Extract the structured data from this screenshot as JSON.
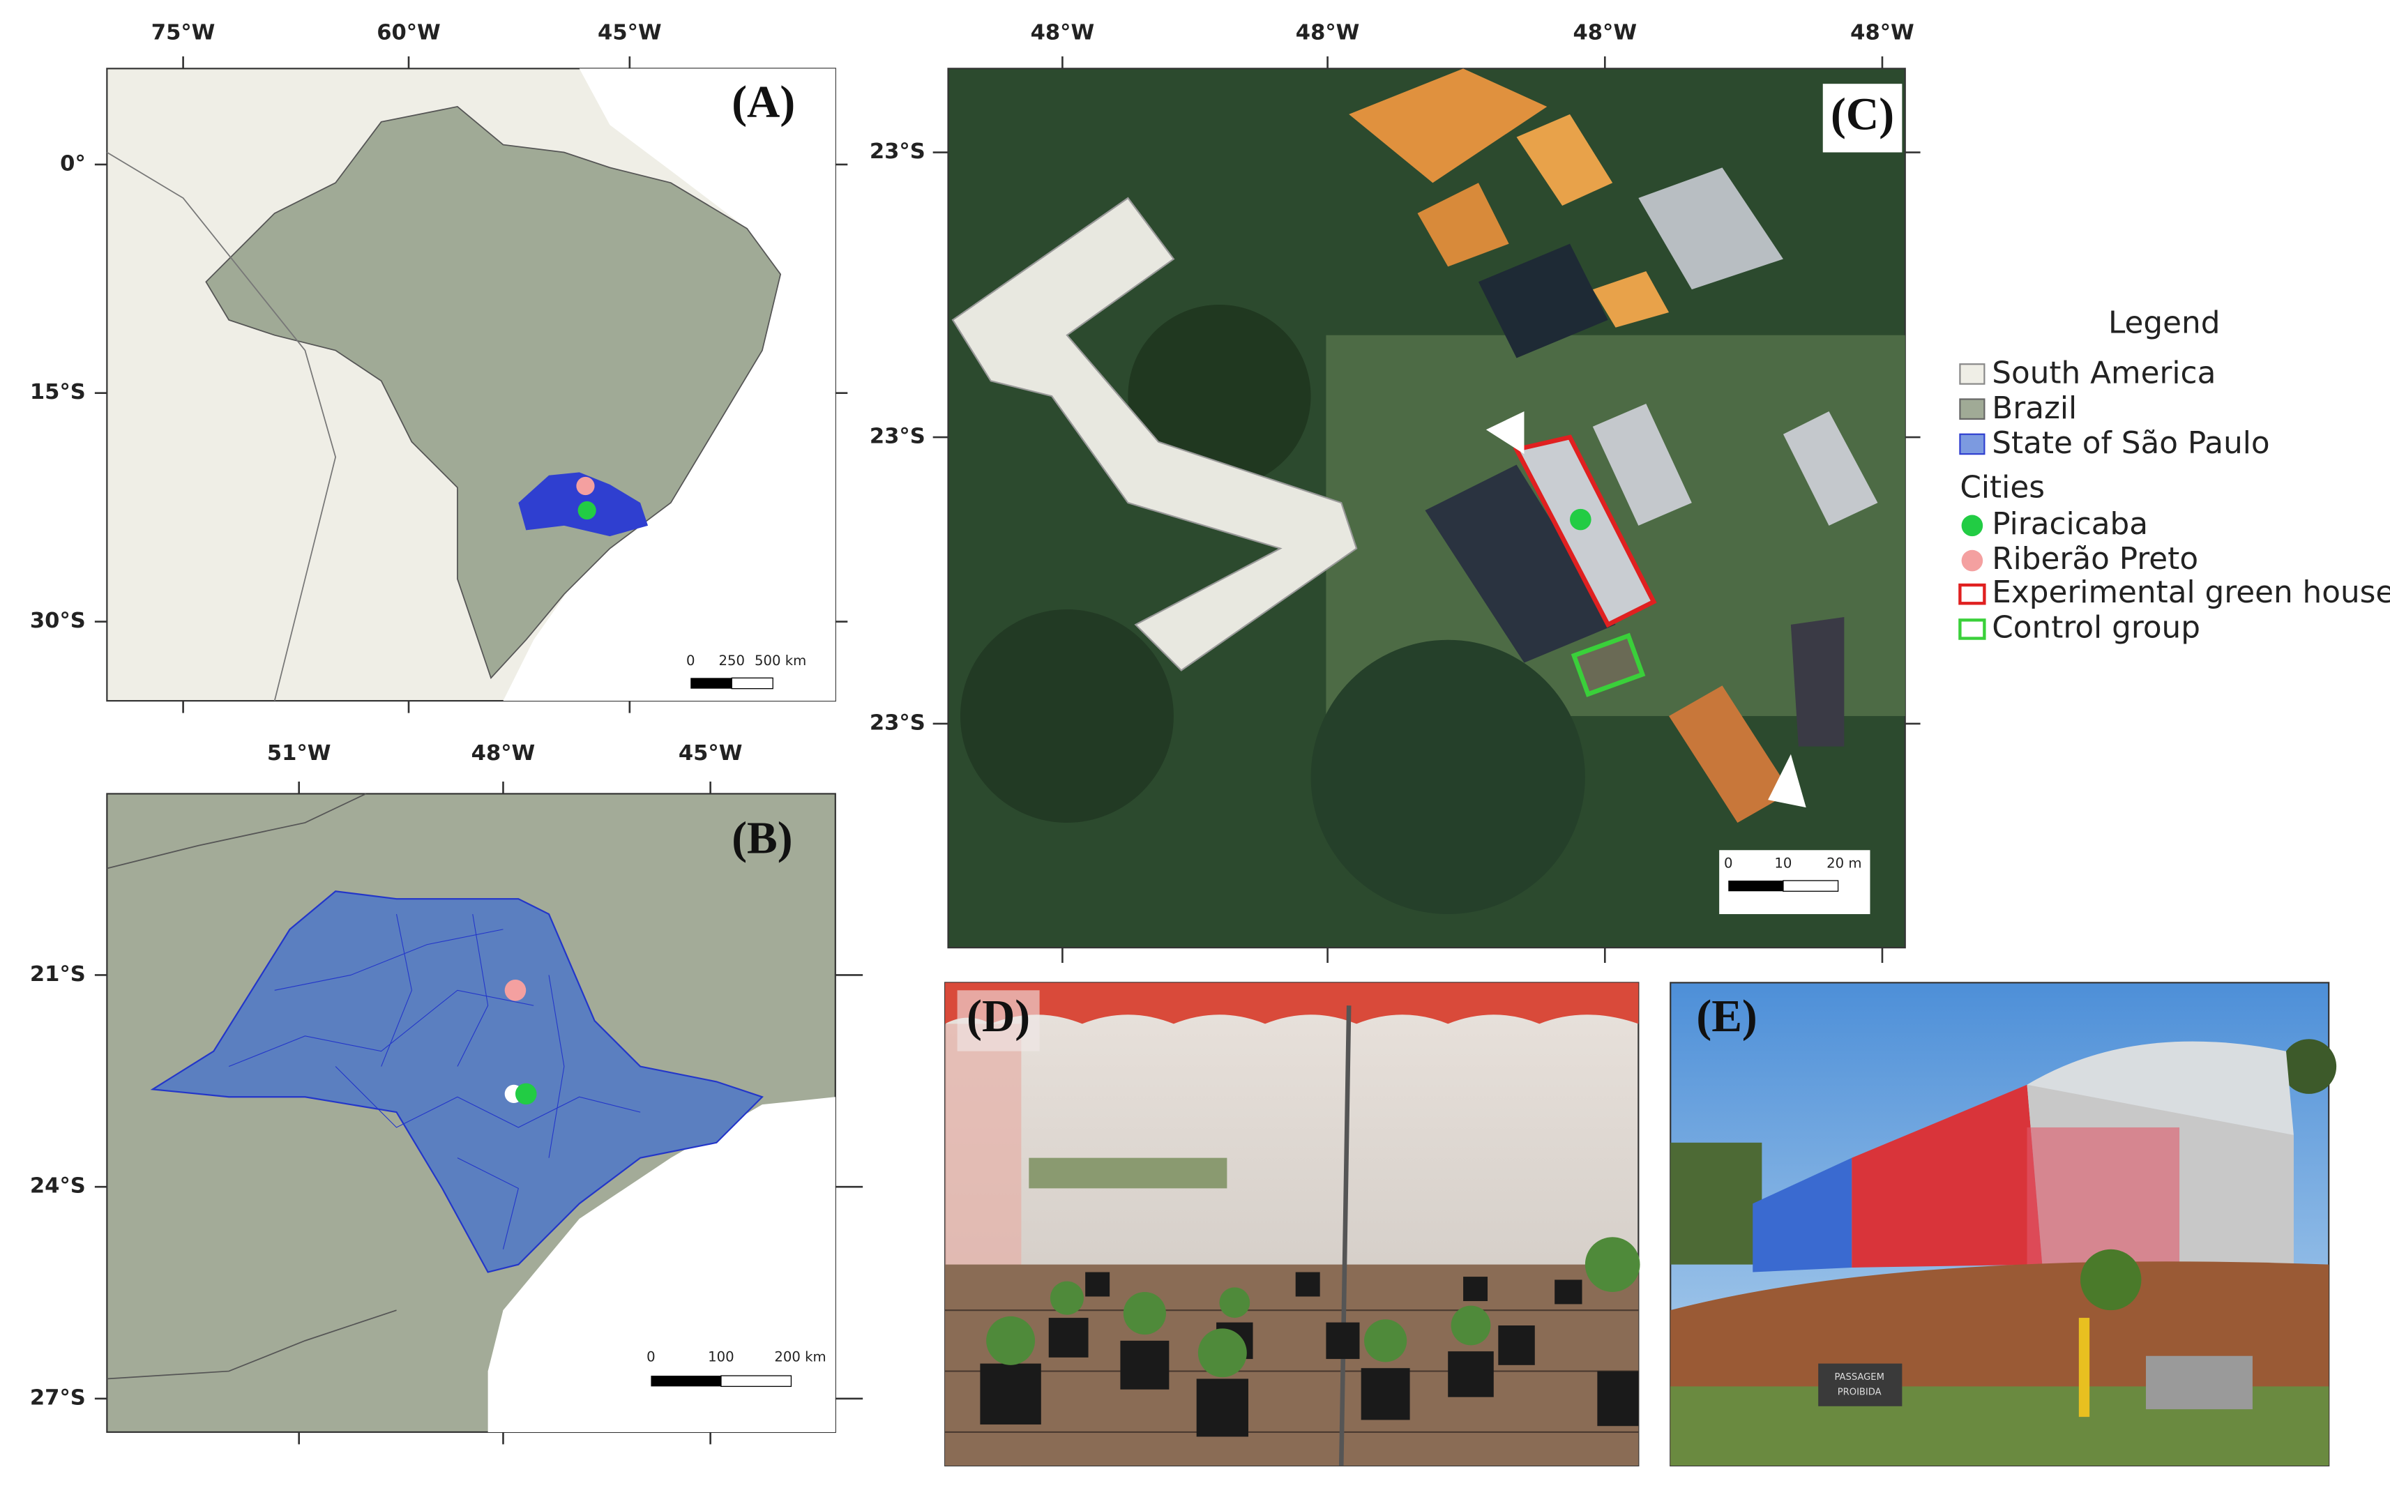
{
  "panels": {
    "a": {
      "label": "(A)",
      "x_labels": [
        "75°W",
        "60°W",
        "45°W"
      ],
      "y_labels": [
        "0°",
        "15°S",
        "30°S"
      ],
      "scale": [
        "0",
        "250",
        "500 km"
      ]
    },
    "b": {
      "label": "(B)",
      "x_labels": [
        "51°W",
        "48°W",
        "45°W"
      ],
      "y_labels": [
        "21°S",
        "24°S",
        "27°S"
      ],
      "scale": [
        "0",
        "100",
        "200 km"
      ]
    },
    "c": {
      "label": "(C)",
      "x_labels": [
        "48°W",
        "48°W",
        "48°W",
        "48°W"
      ],
      "y_labels": [
        "23°S",
        "23°S",
        "23°S"
      ],
      "scale": [
        "0",
        "10",
        "20 m"
      ]
    },
    "d": {
      "label": "(D)"
    },
    "e": {
      "label": "(E)",
      "sign": [
        "PASSAGEM",
        "PROIBIDA"
      ]
    }
  },
  "legend": {
    "title": "Legend",
    "items": [
      "South America",
      "Brazil",
      "State of São Paulo"
    ],
    "cities_heading": "Cities",
    "cities": [
      "Piracicaba",
      "Riberão Preto",
      "Experimental green house",
      "Control group"
    ]
  }
}
